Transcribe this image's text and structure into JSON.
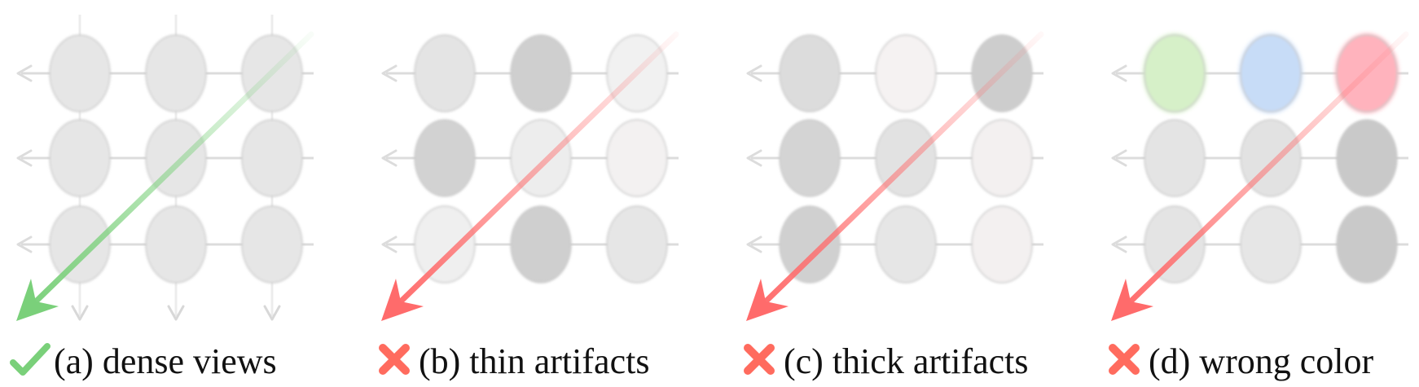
{
  "panels": [
    {
      "id": "a",
      "caption": "(a) dense views",
      "status": "correct",
      "status_icon": "check-icon",
      "arrow_color": "#7ad07a",
      "cells": [
        [
          "#e6e6e6",
          "#e6e6e6",
          "#e6e6e6"
        ],
        [
          "#e6e6e6",
          "#e6e6e6",
          "#e6e6e6"
        ],
        [
          "#e6e6e6",
          "#e6e6e6",
          "#e6e6e6"
        ]
      ],
      "down_arrows": true
    },
    {
      "id": "b",
      "caption": "(b) thin artifacts",
      "status": "wrong",
      "status_icon": "cross-icon",
      "arrow_color": "#ff6b6b",
      "cells": [
        [
          "#e4e4e4",
          "#cfcfcf",
          "#f1f1f1"
        ],
        [
          "#d2d2d2",
          "#ededed",
          "#f3f1f1"
        ],
        [
          "#efefef",
          "#cfcfcf",
          "#e6e6e6"
        ]
      ],
      "down_arrows": false
    },
    {
      "id": "c",
      "caption": "(c) thick artifacts",
      "status": "wrong",
      "status_icon": "cross-icon",
      "arrow_color": "#ff6b6b",
      "cells": [
        [
          "#dcdcdc",
          "#f5f2f2",
          "#cdcdcd"
        ],
        [
          "#d4d4d4",
          "#e2e2e2",
          "#f3f0f0"
        ],
        [
          "#d0d0d0",
          "#e6e6e6",
          "#f3f0f0"
        ]
      ],
      "down_arrows": false
    },
    {
      "id": "d",
      "caption": "(d) wrong color",
      "status": "wrong",
      "status_icon": "cross-icon",
      "arrow_color": "#ff6b6b",
      "cells": [
        [
          "#d6f0c8",
          "#c7dcf7",
          "#ffb3bd"
        ],
        [
          "#e4e4e4",
          "#e2e2e2",
          "#c9c9c9"
        ],
        [
          "#e4e4e4",
          "#e6e6e6",
          "#c9c9c9"
        ]
      ],
      "down_arrows": false
    }
  ],
  "colors": {
    "check": "#7ad07a",
    "cross": "#ff6b5e",
    "grid_line": "#dcdcdc",
    "cell_stroke": "#c8c8c8"
  }
}
